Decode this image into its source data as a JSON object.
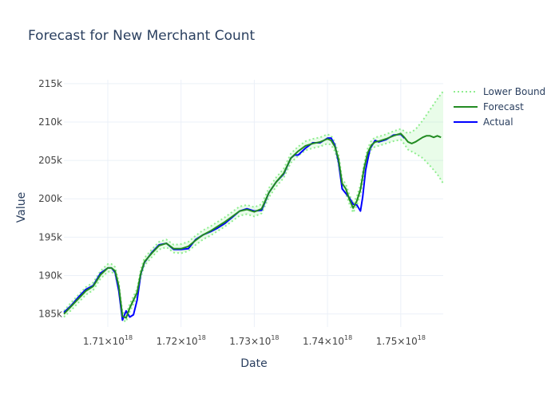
{
  "chart_data": {
    "type": "line",
    "title": "Forecast for New Merchant Count",
    "xlabel": "Date",
    "ylabel": "Value",
    "xlim": [
      1.704e+18,
      1.7558e+18
    ],
    "ylim": [
      183300,
      215500
    ],
    "grid": true,
    "legend_position": "top-right",
    "x_ticks": [
      {
        "value": 1.71e+18,
        "mantissa": "1.71",
        "exp": "18"
      },
      {
        "value": 1.72e+18,
        "mantissa": "1.72",
        "exp": "18"
      },
      {
        "value": 1.73e+18,
        "mantissa": "1.73",
        "exp": "18"
      },
      {
        "value": 1.74e+18,
        "mantissa": "1.74",
        "exp": "18"
      },
      {
        "value": 1.75e+18,
        "mantissa": "1.75",
        "exp": "18"
      }
    ],
    "y_ticks": [
      {
        "value": 185000,
        "label": "185k"
      },
      {
        "value": 190000,
        "label": "190k"
      },
      {
        "value": 195000,
        "label": "195k"
      },
      {
        "value": 200000,
        "label": "200k"
      },
      {
        "value": 205000,
        "label": "205k"
      },
      {
        "value": 210000,
        "label": "210k"
      },
      {
        "value": 215000,
        "label": "215k"
      }
    ],
    "legend": [
      {
        "name": "Lower Bound",
        "color": "#90ee90",
        "dash": true
      },
      {
        "name": "Forecast",
        "color": "#228b22",
        "dash": false
      },
      {
        "name": "Actual",
        "color": "#0000ff",
        "dash": false
      }
    ],
    "colors": {
      "actual": "#0000ff",
      "forecast": "#228b22",
      "bound": "#90ee90",
      "band_fill": "rgba(144,238,144,0.2)"
    },
    "series": [
      {
        "name": "Actual",
        "x": [
          1.704e+18,
          1.705e+18,
          1.706e+18,
          1.707e+18,
          1.708e+18,
          1.709e+18,
          1.71e+18,
          1.7105e+18,
          1.711e+18,
          1.7115e+18,
          1.712e+18,
          1.7125e+18,
          1.713e+18,
          1.7135e+18,
          1.714e+18,
          1.7145e+18,
          1.715e+18,
          1.716e+18,
          1.717e+18,
          1.718e+18,
          1.719e+18,
          1.72e+18,
          1.721e+18,
          1.722e+18,
          1.723e+18,
          1.724e+18,
          1.725e+18,
          1.726e+18,
          1.727e+18,
          1.728e+18,
          1.729e+18,
          1.73e+18,
          1.731e+18,
          1.732e+18,
          1.733e+18,
          1.734e+18,
          1.735e+18,
          1.7355e+18,
          1.736e+18,
          1.737e+18,
          1.738e+18,
          1.739e+18,
          1.74e+18,
          1.7405e+18,
          1.741e+18,
          1.7415e+18,
          1.742e+18,
          1.7425e+18,
          1.743e+18,
          1.7435e+18,
          1.744e+18,
          1.7445e+18,
          1.7448e+18,
          1.7452e+18,
          1.7458e+18,
          1.7465e+18,
          1.747e+18,
          1.748e+18,
          1.749e+18,
          1.75e+18,
          1.7505e+18
        ],
        "y": [
          185200,
          186100,
          187200,
          188200,
          188700,
          190300,
          191000,
          191000,
          190400,
          188000,
          184200,
          185400,
          184600,
          184900,
          186800,
          190200,
          191700,
          193000,
          194000,
          194200,
          193400,
          193400,
          193500,
          194700,
          195300,
          195700,
          196200,
          196800,
          197600,
          198400,
          198700,
          198400,
          198500,
          200800,
          202200,
          203200,
          205300,
          205700,
          205700,
          206600,
          207300,
          207300,
          207900,
          207900,
          207000,
          204800,
          201300,
          200700,
          200100,
          199300,
          199200,
          198400,
          200200,
          203700,
          206500,
          207600,
          207400,
          207700,
          208300,
          208400,
          207900
        ]
      },
      {
        "name": "Forecast",
        "x": [
          1.704e+18,
          1.705e+18,
          1.706e+18,
          1.707e+18,
          1.708e+18,
          1.709e+18,
          1.71e+18,
          1.7105e+18,
          1.711e+18,
          1.7115e+18,
          1.712e+18,
          1.7125e+18,
          1.713e+18,
          1.7135e+18,
          1.714e+18,
          1.7145e+18,
          1.715e+18,
          1.716e+18,
          1.717e+18,
          1.718e+18,
          1.719e+18,
          1.72e+18,
          1.721e+18,
          1.722e+18,
          1.723e+18,
          1.724e+18,
          1.725e+18,
          1.726e+18,
          1.727e+18,
          1.728e+18,
          1.729e+18,
          1.73e+18,
          1.731e+18,
          1.732e+18,
          1.733e+18,
          1.734e+18,
          1.735e+18,
          1.736e+18,
          1.737e+18,
          1.738e+18,
          1.739e+18,
          1.74e+18,
          1.7405e+18,
          1.741e+18,
          1.7415e+18,
          1.742e+18,
          1.7425e+18,
          1.743e+18,
          1.7435e+18,
          1.744e+18,
          1.7445e+18,
          1.745e+18,
          1.7455e+18,
          1.746e+18,
          1.7465e+18,
          1.747e+18,
          1.748e+18,
          1.749e+18,
          1.75e+18,
          1.7505e+18,
          1.751e+18,
          1.7515e+18,
          1.752e+18,
          1.7525e+18,
          1.753e+18,
          1.7535e+18,
          1.754e+18,
          1.7545e+18,
          1.755e+18,
          1.7555e+18
        ],
        "y": [
          185000,
          186000,
          187000,
          188000,
          188600,
          190100,
          191000,
          191000,
          190600,
          188600,
          184700,
          184500,
          185800,
          186800,
          187800,
          190300,
          191800,
          192900,
          193900,
          194200,
          193500,
          193500,
          193800,
          194600,
          195300,
          195800,
          196400,
          197000,
          197700,
          198400,
          198600,
          198300,
          198700,
          200800,
          202200,
          203300,
          205300,
          206200,
          206900,
          207200,
          207400,
          207800,
          207600,
          206800,
          205200,
          202000,
          201300,
          199900,
          198800,
          199700,
          201200,
          204000,
          206000,
          207000,
          207400,
          207500,
          207800,
          208200,
          208500,
          208000,
          207400,
          207200,
          207400,
          207700,
          208000,
          208200,
          208200,
          208000,
          208200,
          208000
        ]
      },
      {
        "name": "Lower Bound",
        "x": [
          1.704e+18,
          1.705e+18,
          1.706e+18,
          1.707e+18,
          1.708e+18,
          1.709e+18,
          1.71e+18,
          1.7105e+18,
          1.711e+18,
          1.7115e+18,
          1.712e+18,
          1.7125e+18,
          1.713e+18,
          1.7135e+18,
          1.714e+18,
          1.7145e+18,
          1.715e+18,
          1.716e+18,
          1.717e+18,
          1.718e+18,
          1.719e+18,
          1.72e+18,
          1.721e+18,
          1.722e+18,
          1.723e+18,
          1.724e+18,
          1.725e+18,
          1.726e+18,
          1.727e+18,
          1.728e+18,
          1.729e+18,
          1.73e+18,
          1.731e+18,
          1.732e+18,
          1.733e+18,
          1.734e+18,
          1.735e+18,
          1.736e+18,
          1.737e+18,
          1.738e+18,
          1.739e+18,
          1.74e+18,
          1.7405e+18,
          1.741e+18,
          1.7415e+18,
          1.742e+18,
          1.7425e+18,
          1.743e+18,
          1.7435e+18,
          1.744e+18,
          1.7445e+18,
          1.745e+18,
          1.7455e+18,
          1.746e+18,
          1.7465e+18,
          1.747e+18,
          1.748e+18,
          1.749e+18,
          1.75e+18,
          1.7505e+18,
          1.751e+18,
          1.752e+18,
          1.753e+18,
          1.754e+18,
          1.755e+18,
          1.7558e+18
        ],
        "y": [
          184600,
          185500,
          186500,
          187500,
          188100,
          189600,
          190500,
          190500,
          190100,
          188100,
          184200,
          184000,
          185300,
          186300,
          187300,
          189800,
          191300,
          192400,
          193400,
          193700,
          193000,
          192900,
          193200,
          194000,
          194700,
          195200,
          195800,
          196400,
          197100,
          197800,
          198000,
          197700,
          198100,
          200200,
          201600,
          202700,
          204700,
          205600,
          206300,
          206600,
          206800,
          207200,
          207000,
          206200,
          204600,
          201400,
          200700,
          199300,
          198200,
          199100,
          200600,
          203400,
          205400,
          206400,
          206800,
          206900,
          207200,
          207500,
          207700,
          207100,
          206400,
          205900,
          205300,
          204300,
          203200,
          202000
        ]
      },
      {
        "name": "Upper Bound",
        "x": [
          1.704e+18,
          1.705e+18,
          1.706e+18,
          1.707e+18,
          1.708e+18,
          1.709e+18,
          1.71e+18,
          1.7105e+18,
          1.711e+18,
          1.7115e+18,
          1.712e+18,
          1.7125e+18,
          1.713e+18,
          1.7135e+18,
          1.714e+18,
          1.7145e+18,
          1.715e+18,
          1.716e+18,
          1.717e+18,
          1.718e+18,
          1.719e+18,
          1.72e+18,
          1.721e+18,
          1.722e+18,
          1.723e+18,
          1.724e+18,
          1.725e+18,
          1.726e+18,
          1.727e+18,
          1.728e+18,
          1.729e+18,
          1.73e+18,
          1.731e+18,
          1.732e+18,
          1.733e+18,
          1.734e+18,
          1.735e+18,
          1.736e+18,
          1.737e+18,
          1.738e+18,
          1.739e+18,
          1.74e+18,
          1.7405e+18,
          1.741e+18,
          1.7415e+18,
          1.742e+18,
          1.7425e+18,
          1.743e+18,
          1.7435e+18,
          1.744e+18,
          1.7445e+18,
          1.745e+18,
          1.7455e+18,
          1.746e+18,
          1.7465e+18,
          1.747e+18,
          1.748e+18,
          1.749e+18,
          1.75e+18,
          1.7505e+18,
          1.751e+18,
          1.752e+18,
          1.753e+18,
          1.754e+18,
          1.755e+18,
          1.7558e+18
        ],
        "y": [
          185400,
          186500,
          187500,
          188500,
          189100,
          190600,
          191500,
          191500,
          191100,
          189100,
          185200,
          185000,
          186300,
          187300,
          188300,
          190800,
          192300,
          193400,
          194400,
          194700,
          194000,
          194100,
          194400,
          195200,
          195900,
          196400,
          197000,
          197600,
          198300,
          199000,
          199200,
          198900,
          199300,
          201400,
          202800,
          203900,
          205900,
          206800,
          207500,
          207800,
          208000,
          208400,
          208200,
          207400,
          205800,
          202600,
          201900,
          200500,
          199400,
          200300,
          201800,
          204600,
          206600,
          207600,
          208000,
          208100,
          208400,
          208800,
          209100,
          208800,
          208500,
          209000,
          210200,
          211600,
          213000,
          214000
        ]
      }
    ]
  }
}
